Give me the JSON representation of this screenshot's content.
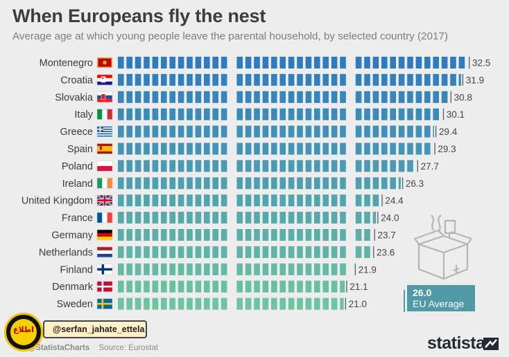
{
  "header": {
    "title": "When Europeans fly the nest",
    "subtitle": "Average age at which young people leave the parental household, by selected country (2017)"
  },
  "chart_data": {
    "type": "bar",
    "orientation": "horizontal",
    "title": "When Europeans fly the nest",
    "subtitle": "Average age at which young people leave the parental household, by selected country (2017)",
    "categories": [
      "Montenegro",
      "Croatia",
      "Slovakia",
      "Italy",
      "Greece",
      "Spain",
      "Poland",
      "Ireland",
      "United Kingdom",
      "France",
      "Germany",
      "Netherlands",
      "Finland",
      "Denmark",
      "Sweden"
    ],
    "values": [
      32.5,
      31.9,
      30.8,
      30.1,
      29.4,
      29.3,
      27.7,
      26.3,
      24.4,
      24.0,
      23.7,
      23.6,
      21.9,
      21.1,
      21.0
    ],
    "value_labels": [
      "32.5",
      "31.9",
      "30.8",
      "30.1",
      "29.4",
      "29.3",
      "27.7",
      "26.3",
      "24.4",
      "24.0",
      "23.7",
      "23.6",
      "21.9",
      "21.1",
      "21.0"
    ],
    "reference_line": {
      "value": 26.0,
      "label_value": "26.0",
      "label": "EU Average"
    },
    "xlim": [
      0,
      33
    ],
    "grid": false,
    "legend": "none",
    "colors": {
      "gradient_top": "#2e7bc0",
      "gradient_bottom": "#6cc4a0",
      "eu_box": "#4f9aa6"
    }
  },
  "footer": {
    "brand": "@StatistaCharts",
    "source": "Source: Eurostat",
    "logo": "statista"
  },
  "watermark": {
    "handle": "@serfan_jahate_ettela",
    "logo_icon": "circular-seal-icon"
  },
  "icons": {
    "box_icon": "moving-box-icon",
    "statista_icon": "statista-wave-icon"
  }
}
